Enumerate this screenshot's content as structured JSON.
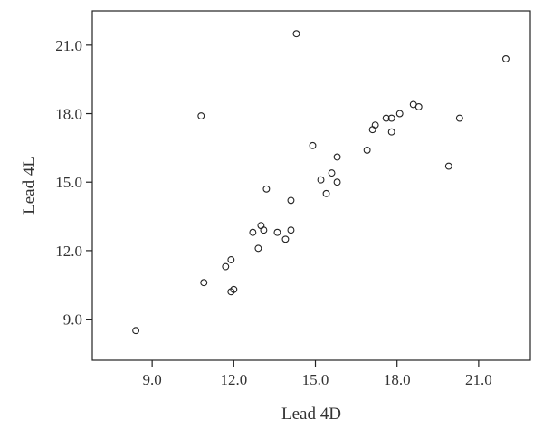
{
  "chart_data": {
    "type": "scatter",
    "xlabel": "Lead 4D",
    "ylabel": "Lead 4L",
    "xlim": [
      6.8,
      22.9
    ],
    "ylim": [
      7.2,
      22.5
    ],
    "x_ticks": [
      9.0,
      12.0,
      15.0,
      18.0,
      21.0
    ],
    "x_tick_labels": [
      "9.0",
      "12.0",
      "15.0",
      "18.0",
      "21.0"
    ],
    "y_ticks": [
      9.0,
      12.0,
      15.0,
      18.0,
      21.0
    ],
    "y_tick_labels": [
      "9.0",
      "12.0",
      "15.0",
      "18.0",
      "21.0"
    ],
    "grid": false,
    "marker": "open-circle",
    "points": [
      {
        "x": 8.4,
        "y": 8.5
      },
      {
        "x": 10.8,
        "y": 17.9
      },
      {
        "x": 10.9,
        "y": 10.6
      },
      {
        "x": 11.7,
        "y": 11.3
      },
      {
        "x": 11.9,
        "y": 11.6
      },
      {
        "x": 11.9,
        "y": 10.2
      },
      {
        "x": 12.0,
        "y": 10.3
      },
      {
        "x": 12.7,
        "y": 12.8
      },
      {
        "x": 12.9,
        "y": 12.1
      },
      {
        "x": 13.0,
        "y": 13.1
      },
      {
        "x": 13.1,
        "y": 12.9
      },
      {
        "x": 13.2,
        "y": 14.7
      },
      {
        "x": 13.6,
        "y": 12.8
      },
      {
        "x": 13.9,
        "y": 12.5
      },
      {
        "x": 14.1,
        "y": 14.2
      },
      {
        "x": 14.1,
        "y": 12.9
      },
      {
        "x": 14.3,
        "y": 21.5
      },
      {
        "x": 14.9,
        "y": 16.6
      },
      {
        "x": 15.2,
        "y": 15.1
      },
      {
        "x": 15.4,
        "y": 14.5
      },
      {
        "x": 15.6,
        "y": 15.4
      },
      {
        "x": 15.8,
        "y": 16.1
      },
      {
        "x": 15.8,
        "y": 15.0
      },
      {
        "x": 16.9,
        "y": 16.4
      },
      {
        "x": 17.1,
        "y": 17.3
      },
      {
        "x": 17.2,
        "y": 17.5
      },
      {
        "x": 17.6,
        "y": 17.8
      },
      {
        "x": 17.8,
        "y": 17.8
      },
      {
        "x": 17.8,
        "y": 17.2
      },
      {
        "x": 18.1,
        "y": 18.0
      },
      {
        "x": 18.6,
        "y": 18.4
      },
      {
        "x": 18.8,
        "y": 18.3
      },
      {
        "x": 19.9,
        "y": 15.7
      },
      {
        "x": 20.3,
        "y": 17.8
      },
      {
        "x": 22.0,
        "y": 20.4
      }
    ]
  }
}
